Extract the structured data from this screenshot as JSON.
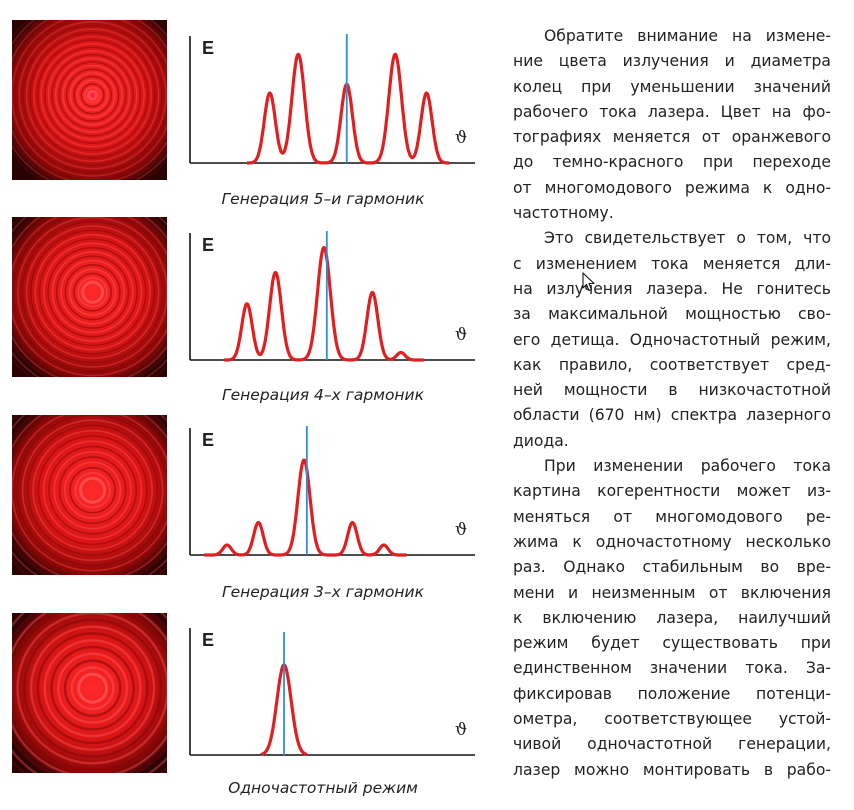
{
  "panels": [
    {
      "caption": "Генерация 5–и гармоник",
      "y_label": "E",
      "x_label": "ϑ",
      "peaks": [
        {
          "x": 0.28,
          "h": 0.56
        },
        {
          "x": 0.38,
          "h": 0.87
        },
        {
          "x": 0.55,
          "h": 0.63
        },
        {
          "x": 0.72,
          "h": 0.87
        },
        {
          "x": 0.83,
          "h": 0.56
        }
      ],
      "line_x": 0.55
    },
    {
      "caption": "Генерация 4–х гармоник",
      "y_label": "E",
      "x_label": "ϑ",
      "peaks": [
        {
          "x": 0.2,
          "h": 0.45
        },
        {
          "x": 0.3,
          "h": 0.7
        },
        {
          "x": 0.47,
          "h": 0.9
        },
        {
          "x": 0.64,
          "h": 0.54
        },
        {
          "x": 0.74,
          "h": 0.06
        }
      ],
      "line_x": 0.48
    },
    {
      "caption": "Генерация 3–х гармоник",
      "y_label": "E",
      "x_label": "ϑ",
      "peaks": [
        {
          "x": 0.13,
          "h": 0.08
        },
        {
          "x": 0.24,
          "h": 0.26
        },
        {
          "x": 0.4,
          "h": 0.76
        },
        {
          "x": 0.57,
          "h": 0.26
        },
        {
          "x": 0.68,
          "h": 0.08
        }
      ],
      "line_x": 0.41
    },
    {
      "caption": "Одночастотный режим",
      "y_label": "E",
      "x_label": "ϑ",
      "peaks": [
        {
          "x": 0.33,
          "h": 0.72
        }
      ],
      "line_x": 0.33
    }
  ],
  "text_lines": [
    {
      "t": "Обратите внимание на измене-",
      "indent": true,
      "last": false
    },
    {
      "t": "ние цвета излучения и диаметра",
      "indent": false,
      "last": false
    },
    {
      "t": "колец при уменьшении значений",
      "indent": false,
      "last": false
    },
    {
      "t": "рабочего тока лазера. Цвет на фо-",
      "indent": false,
      "last": false
    },
    {
      "t": "тографиях меняется от оранжевого",
      "indent": false,
      "last": false
    },
    {
      "t": "до темно-красного при переходе",
      "indent": false,
      "last": false
    },
    {
      "t": "от многомодового режима к одно-",
      "indent": false,
      "last": false
    },
    {
      "t": "частотному.",
      "indent": false,
      "last": true
    },
    {
      "t": "Это свидетельствует о том, что",
      "indent": true,
      "last": false
    },
    {
      "t": "с изменением тока меняется дли-",
      "indent": false,
      "last": false
    },
    {
      "t": "на излучения лазера. Не гонитесь",
      "indent": false,
      "last": false
    },
    {
      "t": "за максимальной мощностью сво-",
      "indent": false,
      "last": false
    },
    {
      "t": "его детища. Одночастотный режим,",
      "indent": false,
      "last": false
    },
    {
      "t": "как правило, соответствует сред-",
      "indent": false,
      "last": false
    },
    {
      "t": "ней мощности в низкочастотной",
      "indent": false,
      "last": false
    },
    {
      "t": "области (670 нм) спектра лазерного",
      "indent": false,
      "last": false
    },
    {
      "t": "диода.",
      "indent": false,
      "last": true
    },
    {
      "t": "При изменении рабочего тока",
      "indent": true,
      "last": false
    },
    {
      "t": "картина когерентности может из-",
      "indent": false,
      "last": false
    },
    {
      "t": "меняться от многомодового ре-",
      "indent": false,
      "last": false
    },
    {
      "t": "жима к одночастотному несколько",
      "indent": false,
      "last": false
    },
    {
      "t": "раз. Однако стабильным во вре-",
      "indent": false,
      "last": false
    },
    {
      "t": "мени и неизменным от включения",
      "indent": false,
      "last": false
    },
    {
      "t": "к включению лазера, наилучший",
      "indent": false,
      "last": false
    },
    {
      "t": "режим будет существовать при",
      "indent": false,
      "last": false
    },
    {
      "t": "единственном значении тока. За-",
      "indent": false,
      "last": false
    },
    {
      "t": "фиксировав положение потенци-",
      "indent": false,
      "last": false
    },
    {
      "t": "ометра, соответствующее устой-",
      "indent": false,
      "last": false
    },
    {
      "t": "чивой одночастотной генерации,",
      "indent": false,
      "last": false
    },
    {
      "t": "лазер можно монтировать в рабо-",
      "indent": false,
      "last": false
    }
  ],
  "colors": {
    "curve": "#e02020",
    "marker": "#2b8fd8",
    "axis": "#111111",
    "laser_bg": "#b01010",
    "laser_ring": "#ff3a3a"
  }
}
